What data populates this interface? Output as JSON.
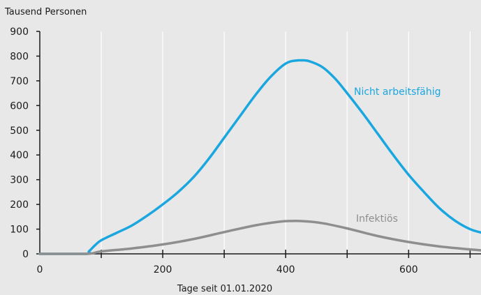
{
  "chart_data": {
    "type": "line",
    "ylabel": "Tausend Personen",
    "xlabel": "Tage seit 01.01.2020",
    "xlim": [
      0,
      720
    ],
    "ylim": [
      0,
      900
    ],
    "xticks": [
      0,
      200,
      400,
      600
    ],
    "xticks_minor": [
      100,
      300,
      500,
      700
    ],
    "yticks": [
      0,
      100,
      200,
      300,
      400,
      500,
      600,
      700,
      800,
      900
    ],
    "grid": "vertical",
    "series": [
      {
        "name": "Nicht arbeitsfähig",
        "color": "#1aa6df",
        "x": [
          0,
          75,
          80,
          90,
          100,
          125,
          150,
          175,
          200,
          225,
          250,
          275,
          300,
          325,
          350,
          375,
          400,
          420,
          430,
          440,
          460,
          480,
          500,
          525,
          550,
          575,
          600,
          625,
          650,
          675,
          700,
          720
        ],
        "values": [
          0,
          0,
          10,
          35,
          55,
          85,
          115,
          155,
          200,
          250,
          310,
          385,
          470,
          555,
          640,
          715,
          770,
          783,
          783,
          778,
          755,
          710,
          650,
          570,
          485,
          400,
          320,
          250,
          185,
          135,
          100,
          85
        ]
      },
      {
        "name": "Infektiös",
        "color": "#8e8e8e",
        "x": [
          0,
          75,
          100,
          150,
          200,
          250,
          300,
          350,
          390,
          410,
          430,
          460,
          500,
          550,
          600,
          650,
          700,
          720
        ],
        "values": [
          0,
          0,
          10,
          22,
          38,
          60,
          88,
          115,
          130,
          133,
          132,
          124,
          103,
          72,
          48,
          30,
          18,
          14
        ]
      }
    ]
  }
}
